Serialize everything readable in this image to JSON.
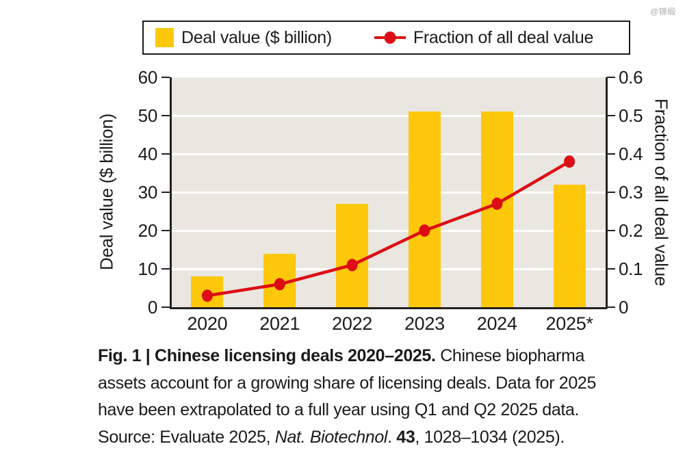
{
  "watermark": "@锦缎",
  "legend": {
    "items": [
      {
        "label": "Deal value ($ billion)",
        "marker": "yellow-square"
      },
      {
        "label": "Fraction of all deal value",
        "marker": "red-line-with-dot"
      }
    ]
  },
  "chart_data": {
    "type": "bar",
    "subtype": "bar-and-line-dual-axis",
    "categories": [
      "2020",
      "2021",
      "2022",
      "2023",
      "2024",
      "2025*"
    ],
    "series": [
      {
        "name": "Deal value ($ billion)",
        "type": "bar",
        "axis": "left",
        "color": "#FDC70C",
        "values": [
          8,
          14,
          27,
          51,
          51,
          32
        ]
      },
      {
        "name": "Fraction of all deal value",
        "type": "line",
        "axis": "right",
        "color": "#DD0D15",
        "values": [
          0.03,
          0.06,
          0.11,
          0.2,
          0.27,
          0.38
        ]
      }
    ],
    "left_axis": {
      "label": "Deal value ($ billion)",
      "min": 0,
      "max": 60,
      "ticks": [
        "0",
        "10",
        "20",
        "30",
        "40",
        "50",
        "60"
      ]
    },
    "right_axis": {
      "label": "Fraction of all deal value",
      "min": 0,
      "max": 0.6,
      "ticks": [
        "0",
        "0.1",
        "0.2",
        "0.3",
        "0.4",
        "0.5",
        "0.6"
      ]
    },
    "grid": true,
    "legend_position": "top",
    "plot_bg": "#E9E7E0",
    "grid_color": "#FFFFFF",
    "axis_color": "#231F20"
  },
  "caption": {
    "line1_bold": "Fig. 1 | Chinese licensing deals 2020–2025.",
    "line1_rest": " Chinese biopharma",
    "line2": "assets account for a growing share of licensing deals. Data for 2025",
    "line3": "have been extrapolated to a full year using Q1 and Q2 2025 data.",
    "line4": {
      "prefix": "Source: Evaluate 2025, ",
      "journal_italic": "Nat. Biotechnol",
      "mid": ". ",
      "volume_bold": "43",
      "suffix": ", 1028–1034 (2025)."
    }
  }
}
